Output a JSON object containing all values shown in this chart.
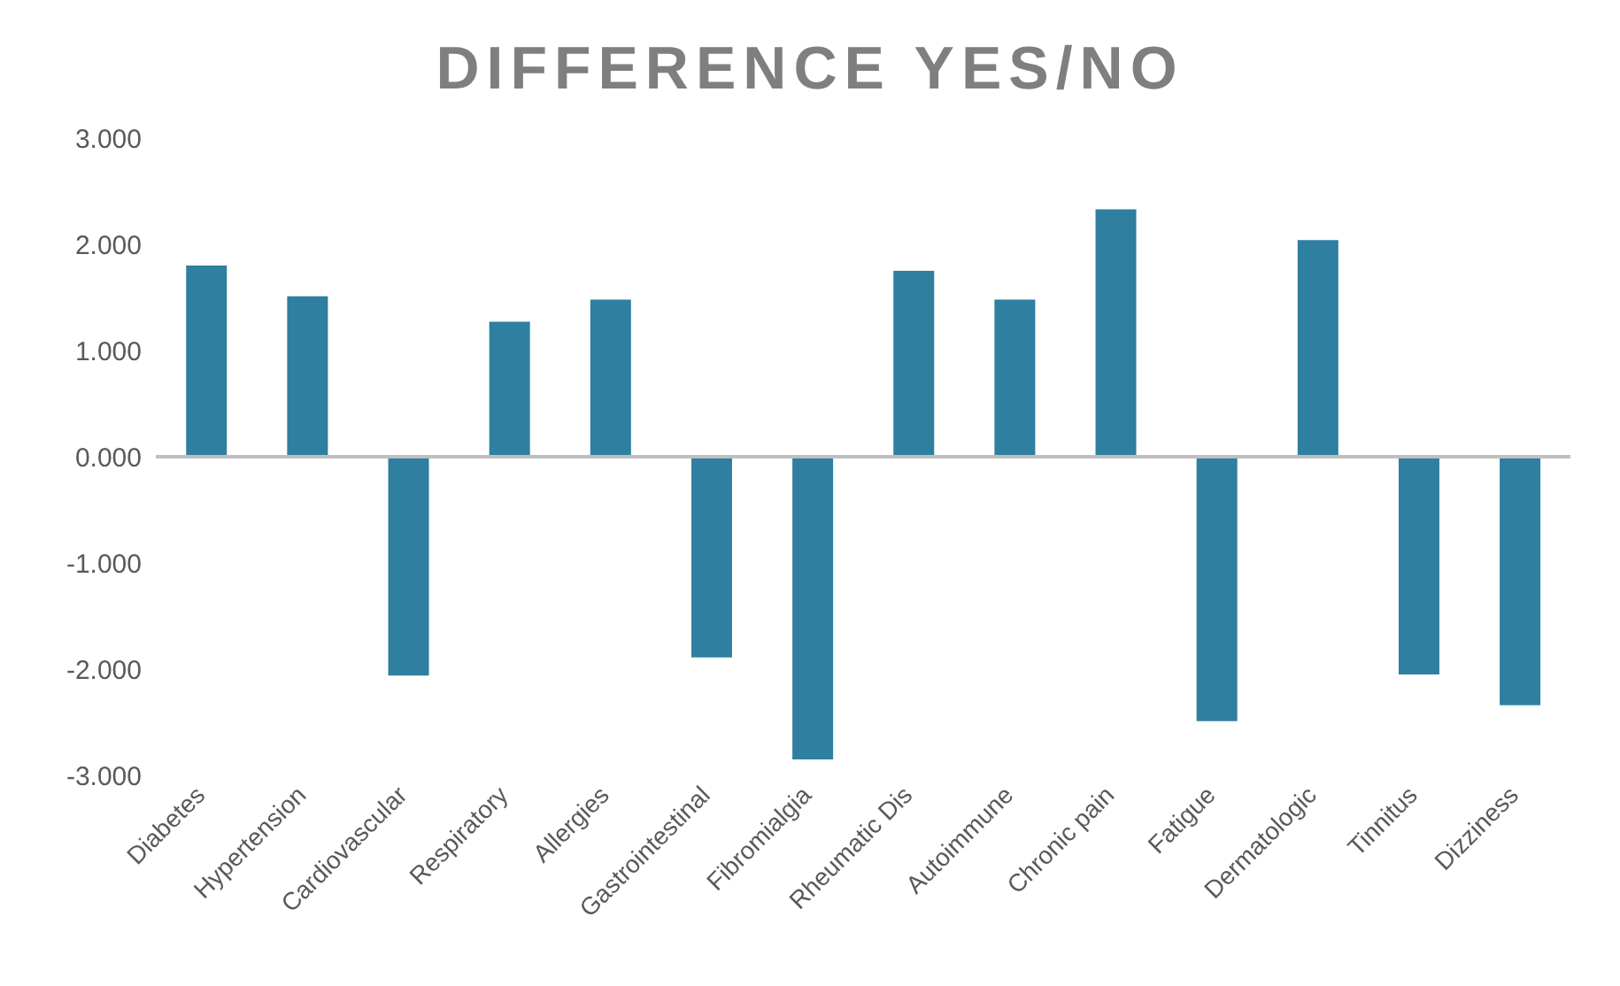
{
  "chart_data": {
    "type": "bar",
    "title": "DIFFERENCE YES/NO",
    "categories": [
      "Diabetes",
      "Hypertension",
      "Cardiovascular",
      "Respiratory",
      "Allergies",
      "Gastrointestinal",
      "Fibromialgia",
      "Rheumatic Dis",
      "Autoimmune",
      "Chronic pain",
      "Fatigue",
      "Dermatologic",
      "Tinnitus",
      "Dizziness"
    ],
    "values": [
      1.8,
      1.51,
      -2.06,
      1.27,
      1.48,
      -1.89,
      -2.85,
      1.75,
      1.48,
      2.33,
      -2.49,
      2.04,
      -2.05,
      -2.34
    ],
    "color": "#2e7fa0",
    "ylim": [
      -3,
      3
    ],
    "yticks": [
      {
        "value": -3,
        "label": "-3.000"
      },
      {
        "value": -2,
        "label": "-2.000"
      },
      {
        "value": -1,
        "label": "-1.000"
      },
      {
        "value": 0,
        "label": "0.000"
      },
      {
        "value": 1,
        "label": "1.000"
      },
      {
        "value": 2,
        "label": "2.000"
      },
      {
        "value": 3,
        "label": "3.000"
      }
    ],
    "ref_lines": [
      {
        "axis": "y",
        "value": 0,
        "color": "#bfbfbf"
      }
    ],
    "grid": false,
    "legend": false
  }
}
